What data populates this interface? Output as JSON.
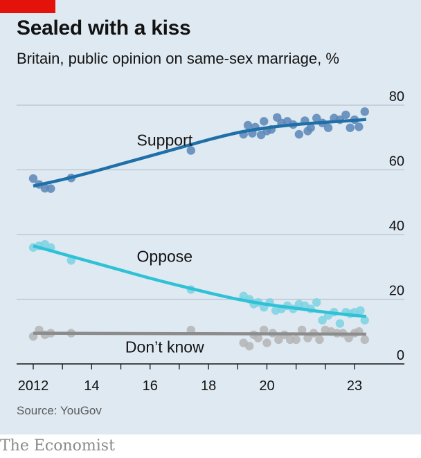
{
  "title": "Sealed with a kiss",
  "subtitle": "Britain, public opinion on same-sex marriage, %",
  "source": "Source: YouGov",
  "footer": "The Economist",
  "colors": {
    "background": "#dfe9f1",
    "brand_red": "#e3120b",
    "support": "#1f6fa8",
    "support_dots": "#5f87b8",
    "oppose": "#2fc1d6",
    "oppose_dots": "#7fd3e2",
    "dont_know": "#8c8c8c",
    "dont_know_dots": "#b5b5b5",
    "grid": "#b6c3cf",
    "axis": "#121212"
  },
  "chart_data": {
    "type": "scatter",
    "title": "Sealed with a kiss",
    "subtitle": "Britain, public opinion on same-sex marriage, %",
    "ylim": [
      0,
      80
    ],
    "yticks": [
      0,
      20,
      40,
      60,
      80
    ],
    "ytick_labels": [
      "0",
      "20",
      "40",
      "60",
      "80"
    ],
    "xlim": [
      2011.8,
      2024.0
    ],
    "xticks": [
      2012,
      2013,
      2014,
      2015,
      2016,
      2017,
      2018,
      2019,
      2020,
      2021,
      2022,
      2023
    ],
    "xtick_labels": [
      {
        "x": 2012,
        "label": "2012"
      },
      {
        "x": 2014,
        "label": "14"
      },
      {
        "x": 2016,
        "label": "16"
      },
      {
        "x": 2018,
        "label": "18"
      },
      {
        "x": 2020,
        "label": "20"
      },
      {
        "x": 2023,
        "label": "23"
      }
    ],
    "grid": true,
    "series": [
      {
        "name": "Support",
        "color": "#1f6fa8",
        "dot_color": "#5f87b8",
        "label_at": [
          2016.5,
          67.5
        ],
        "trend": [
          [
            2012.0,
            55
          ],
          [
            2013,
            57
          ],
          [
            2014,
            59.3
          ],
          [
            2015,
            61.8
          ],
          [
            2016,
            64.3
          ],
          [
            2017,
            66.8
          ],
          [
            2018,
            69.3
          ],
          [
            2019,
            71.5
          ],
          [
            2020,
            73.0
          ],
          [
            2021,
            74.0
          ],
          [
            2022,
            74.7
          ],
          [
            2023,
            75.3
          ],
          [
            2023.4,
            75.6
          ]
        ],
        "points": [
          [
            2012.0,
            57.3
          ],
          [
            2012.2,
            55.5
          ],
          [
            2012.4,
            54.3
          ],
          [
            2012.6,
            54.2
          ],
          [
            2013.3,
            57.5
          ],
          [
            2017.4,
            66
          ],
          [
            2019.2,
            71
          ],
          [
            2019.35,
            73.8
          ],
          [
            2019.5,
            71.3
          ],
          [
            2019.6,
            73.2
          ],
          [
            2019.8,
            70.8
          ],
          [
            2019.9,
            75
          ],
          [
            2020.0,
            72
          ],
          [
            2020.15,
            72.5
          ],
          [
            2020.35,
            76.2
          ],
          [
            2020.5,
            74.5
          ],
          [
            2020.7,
            75
          ],
          [
            2020.9,
            74
          ],
          [
            2021.1,
            71
          ],
          [
            2021.3,
            75.2
          ],
          [
            2021.4,
            72
          ],
          [
            2021.5,
            73
          ],
          [
            2021.7,
            76
          ],
          [
            2021.9,
            74.5
          ],
          [
            2022.1,
            73
          ],
          [
            2022.3,
            76
          ],
          [
            2022.5,
            75.5
          ],
          [
            2022.7,
            77
          ],
          [
            2022.85,
            73
          ],
          [
            2023.0,
            75.5
          ],
          [
            2023.15,
            73.3
          ],
          [
            2023.35,
            78
          ]
        ]
      },
      {
        "name": "Oppose",
        "color": "#2fc1d6",
        "dot_color": "#7fd3e2",
        "label_at": [
          2016.5,
          31.5
        ],
        "trend": [
          [
            2012.0,
            36.5
          ],
          [
            2013,
            34.0
          ],
          [
            2014,
            31.5
          ],
          [
            2015,
            29.0
          ],
          [
            2016,
            26.5
          ],
          [
            2017,
            24.2
          ],
          [
            2018,
            22.0
          ],
          [
            2019,
            20.0
          ],
          [
            2020,
            18.4
          ],
          [
            2021,
            17.2
          ],
          [
            2022,
            16.0
          ],
          [
            2023,
            15.0
          ],
          [
            2023.4,
            14.7
          ]
        ],
        "points": [
          [
            2012.0,
            36
          ],
          [
            2012.2,
            36.5
          ],
          [
            2012.4,
            37
          ],
          [
            2012.6,
            36
          ],
          [
            2013.3,
            32
          ],
          [
            2017.4,
            23
          ],
          [
            2019.2,
            21
          ],
          [
            2019.4,
            20
          ],
          [
            2019.55,
            18.5
          ],
          [
            2019.7,
            19
          ],
          [
            2019.9,
            17.5
          ],
          [
            2020.1,
            19
          ],
          [
            2020.3,
            16.5
          ],
          [
            2020.5,
            17
          ],
          [
            2020.7,
            18
          ],
          [
            2020.9,
            17
          ],
          [
            2021.1,
            18.5
          ],
          [
            2021.3,
            18
          ],
          [
            2021.5,
            17
          ],
          [
            2021.7,
            19
          ],
          [
            2021.9,
            13.5
          ],
          [
            2022.1,
            15
          ],
          [
            2022.3,
            16
          ],
          [
            2022.5,
            12.5
          ],
          [
            2022.7,
            16
          ],
          [
            2022.85,
            15.5
          ],
          [
            2023.0,
            16
          ],
          [
            2023.2,
            16.5
          ],
          [
            2023.35,
            13.5
          ]
        ]
      },
      {
        "name": "Don’t know",
        "color": "#8c8c8c",
        "dot_color": "#b5b5b5",
        "label_at": [
          2016.5,
          3.5
        ],
        "trend": [
          [
            2012.0,
            9.5
          ],
          [
            2023.4,
            9.2
          ]
        ],
        "points": [
          [
            2012.0,
            8.5
          ],
          [
            2012.2,
            10.5
          ],
          [
            2012.4,
            9
          ],
          [
            2012.6,
            9.5
          ],
          [
            2013.3,
            9.5
          ],
          [
            2017.4,
            10.5
          ],
          [
            2019.2,
            6.5
          ],
          [
            2019.4,
            5.5
          ],
          [
            2019.55,
            9
          ],
          [
            2019.7,
            8
          ],
          [
            2019.9,
            10.5
          ],
          [
            2020.0,
            6.5
          ],
          [
            2020.2,
            9.5
          ],
          [
            2020.4,
            7.5
          ],
          [
            2020.6,
            9
          ],
          [
            2020.8,
            7.5
          ],
          [
            2021.0,
            7.5
          ],
          [
            2021.2,
            10.5
          ],
          [
            2021.4,
            8
          ],
          [
            2021.6,
            9.5
          ],
          [
            2021.8,
            7.5
          ],
          [
            2022.0,
            10.5
          ],
          [
            2022.2,
            10
          ],
          [
            2022.4,
            9.5
          ],
          [
            2022.6,
            9.5
          ],
          [
            2022.8,
            8
          ],
          [
            2023.0,
            9.5
          ],
          [
            2023.15,
            10
          ],
          [
            2023.35,
            7.5
          ]
        ]
      }
    ]
  }
}
